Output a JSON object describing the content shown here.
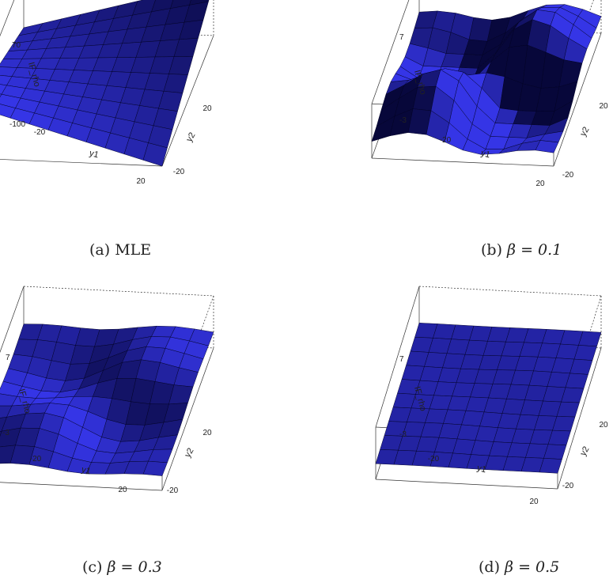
{
  "figure": {
    "panels": [
      {
        "id": "a",
        "caption_prefix": "(a)",
        "caption_text": "MLE",
        "caption_beta": "",
        "z_label": "IF_rho",
        "x_label": "y1",
        "y_label": "y2",
        "z_ticks": [
          "70",
          "-100"
        ],
        "x_ticks": [
          "-20",
          "20"
        ],
        "y_ticks": [
          "20",
          "-20"
        ]
      },
      {
        "id": "b",
        "caption_prefix": "(b)",
        "caption_text": "",
        "caption_beta": "β = 0.1",
        "z_label": "IF_rho",
        "x_label": "y1",
        "y_label": "y2",
        "z_ticks": [
          "7",
          "-3"
        ],
        "x_ticks": [
          "-20",
          "20"
        ],
        "y_ticks": [
          "20",
          "-20"
        ]
      },
      {
        "id": "c",
        "caption_prefix": "(c)",
        "caption_text": "",
        "caption_beta": "β = 0.3",
        "z_label": "IF_rho",
        "x_label": "y1",
        "y_label": "y2",
        "z_ticks": [
          "7",
          "-3"
        ],
        "x_ticks": [
          "-20",
          "20"
        ],
        "y_ticks": [
          "20",
          "-20"
        ]
      },
      {
        "id": "d",
        "caption_prefix": "(d)",
        "caption_text": "",
        "caption_beta": "β = 0.5",
        "z_label": "IF_rho",
        "x_label": "y1",
        "y_label": "y2",
        "z_ticks": [
          "7",
          "-3"
        ],
        "x_ticks": [
          "-20",
          "20"
        ],
        "y_ticks": [
          "20",
          "-20"
        ]
      }
    ]
  },
  "colors": {
    "surface_light": "#3535e6",
    "surface_mid": "#1c1cb0",
    "surface_dark": "#07073a",
    "mesh": "#000022",
    "box": "#333333"
  },
  "chart_data": [
    {
      "type": "surface3d",
      "title": "MLE",
      "xlabel": "y1",
      "ylabel": "y2",
      "zlabel": "IF_rho",
      "xlim": [
        -20,
        20
      ],
      "ylim": [
        -20,
        20
      ],
      "zlim": [
        -100,
        70
      ],
      "surface_model": "saddle",
      "amplitude": 170
    },
    {
      "type": "surface3d",
      "title": "β = 0.1",
      "xlabel": "y1",
      "ylabel": "y2",
      "zlabel": "IF_rho",
      "xlim": [
        -20,
        20
      ],
      "ylim": [
        -20,
        20
      ],
      "zlim": [
        -3,
        7
      ],
      "surface_model": "redescending",
      "amplitude": 8
    },
    {
      "type": "surface3d",
      "title": "β = 0.3",
      "xlabel": "y1",
      "ylabel": "y2",
      "zlabel": "IF_rho",
      "xlim": [
        -20,
        20
      ],
      "ylim": [
        -20,
        20
      ],
      "zlim": [
        -3,
        7
      ],
      "surface_model": "redescending",
      "amplitude": 3
    },
    {
      "type": "surface3d",
      "title": "β = 0.5",
      "xlabel": "y1",
      "ylabel": "y2",
      "zlabel": "IF_rho",
      "xlim": [
        -20,
        20
      ],
      "ylim": [
        -20,
        20
      ],
      "zlim": [
        -3,
        7
      ],
      "surface_model": "redescending",
      "amplitude": 0.2
    }
  ]
}
